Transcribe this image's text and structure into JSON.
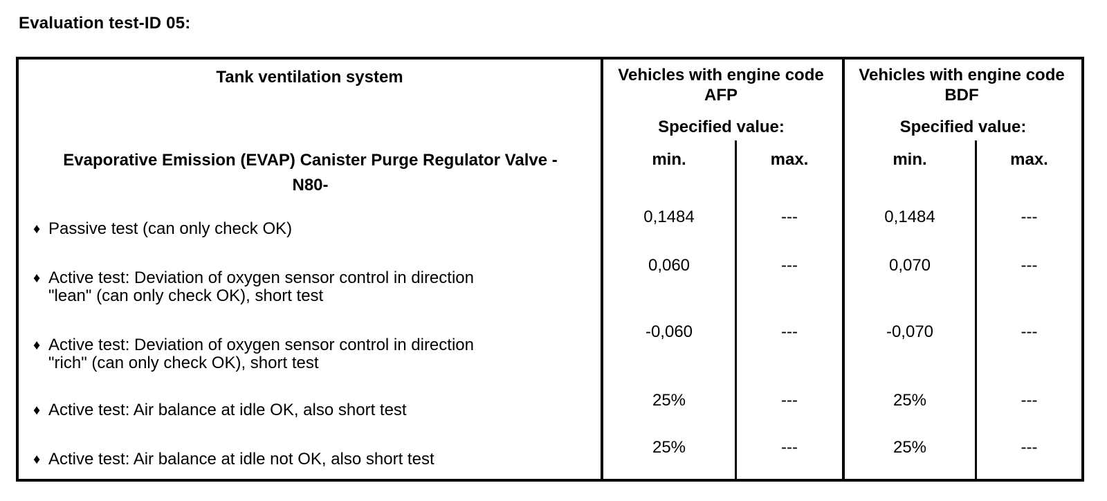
{
  "page_title": "Evaluation test-ID 05:",
  "table": {
    "col1_header": "Tank ventilation system",
    "bullet": "♦",
    "item_header": "Evaporative Emission (EVAP) Canister Purge Regulator Valve -\nN80-",
    "groups": {
      "afp": {
        "title": "Vehicles with engine code AFP",
        "spec_label": "Specified value:",
        "min_label": "min.",
        "max_label": "max."
      },
      "bdf": {
        "title": "Vehicles with engine code BDF",
        "spec_label": "Specified value:",
        "min_label": "min.",
        "max_label": "max."
      }
    },
    "rows": [
      {
        "label": "Passive test (can only check OK)",
        "afp_min": "0,1484",
        "afp_max": "---",
        "bdf_min": "0,1484",
        "bdf_max": "---"
      },
      {
        "label": "Active test: Deviation of oxygen sensor control in direction\n\"lean\" (can only check OK), short test",
        "afp_min": "0,060",
        "afp_max": "---",
        "bdf_min": "0,070",
        "bdf_max": "---"
      },
      {
        "label": "Active test: Deviation of oxygen sensor control in direction\n\"rich\" (can only check OK), short test",
        "afp_min": "-0,060",
        "afp_max": "---",
        "bdf_min": "-0,070",
        "bdf_max": "---"
      },
      {
        "label": "Active test: Air balance at idle OK, also short test",
        "afp_min": "25%",
        "afp_max": "---",
        "bdf_min": "25%",
        "bdf_max": "---"
      },
      {
        "label": "Active test: Air balance at idle not OK, also short test",
        "afp_min": "25%",
        "afp_max": "---",
        "bdf_min": "25%",
        "bdf_max": "---"
      }
    ]
  }
}
